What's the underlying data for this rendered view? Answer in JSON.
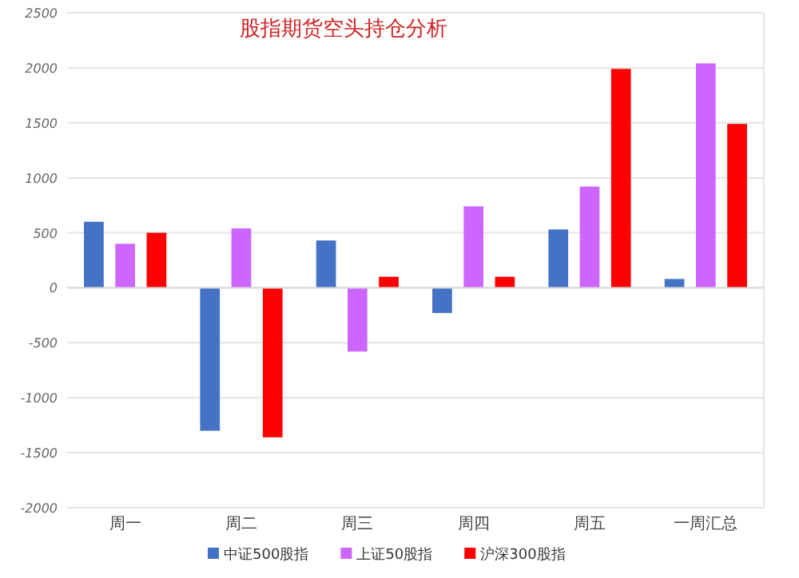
{
  "chart_data": {
    "type": "bar",
    "title": "股指期货空头持仓分析",
    "categories": [
      "周一",
      "周二",
      "周三",
      "周四",
      "周五",
      "一周汇总"
    ],
    "series": [
      {
        "name": "中证500股指",
        "color": "#4472c4",
        "values": [
          600,
          -1300,
          430,
          -230,
          530,
          80
        ]
      },
      {
        "name": "上证50股指",
        "color": "#cc66ff",
        "values": [
          400,
          540,
          -580,
          740,
          920,
          2040
        ]
      },
      {
        "name": "沪深300股指",
        "color": "#ff0000",
        "values": [
          500,
          -1360,
          100,
          100,
          1990,
          1490
        ]
      }
    ],
    "ylim": [
      -2000,
      2500
    ],
    "yticks": [
      -2000,
      -1500,
      -1000,
      -500,
      0,
      500,
      1000,
      1500,
      2000,
      2500
    ],
    "grid": "y",
    "legend": "bottom"
  }
}
